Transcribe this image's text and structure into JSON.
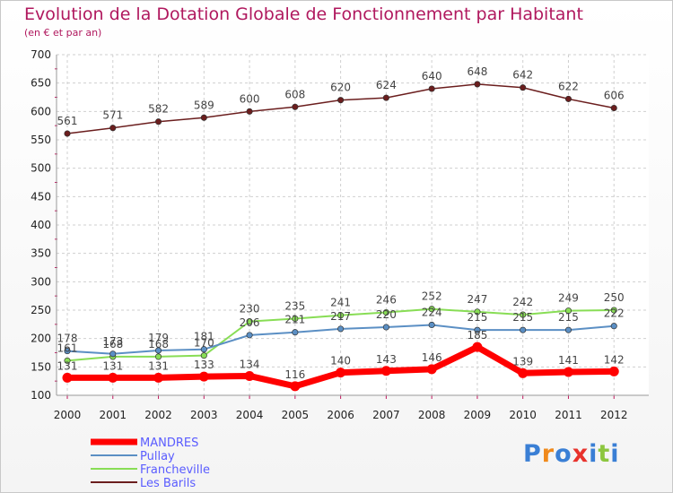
{
  "title": "Evolution de la Dotation Globale de Fonctionnement par Habitant",
  "subtitle": "(en € et par an)",
  "logo": {
    "text": "Proxiti",
    "colors": [
      "#3a7fd5",
      "#f08a1c",
      "#3a7fd5",
      "#e8322c",
      "#3a7fd5",
      "#8cc63f",
      "#3a7fd5"
    ]
  },
  "chart_data": {
    "type": "line",
    "title": "Evolution de la Dotation Globale de Fonctionnement par Habitant",
    "subtitle": "(en € et par an)",
    "xlabel": "",
    "ylabel": "",
    "ylim": [
      100,
      700
    ],
    "yticks": [
      "100",
      "150",
      "200",
      "250",
      "300",
      "350",
      "400",
      "450",
      "500",
      "550",
      "600",
      "650",
      "700"
    ],
    "grid": true,
    "legend_position": "bottom-left",
    "categories": [
      "2000",
      "2001",
      "2002",
      "2003",
      "2004",
      "2005",
      "2006",
      "2007",
      "2008",
      "2009",
      "2010",
      "2011",
      "2012"
    ],
    "series": [
      {
        "name": "MANDRES",
        "color": "#ff0000",
        "label_color": "#444444",
        "values": [
          131,
          131,
          131,
          133,
          134,
          116,
          140,
          143,
          146,
          185,
          139,
          141,
          142
        ]
      },
      {
        "name": "Pullay",
        "color": "#5b8fc4",
        "label_color": "#444444",
        "values": [
          178,
          173,
          179,
          181,
          206,
          211,
          217,
          220,
          224,
          215,
          215,
          215,
          222
        ]
      },
      {
        "name": "Francheville",
        "color": "#88dd55",
        "label_color": "#444444",
        "values": [
          161,
          168,
          168,
          170,
          230,
          235,
          241,
          246,
          252,
          247,
          242,
          249,
          250
        ]
      },
      {
        "name": "Les Barils",
        "color": "#6b1e1e",
        "label_color": "#444444",
        "values": [
          561,
          571,
          582,
          589,
          600,
          608,
          620,
          624,
          640,
          648,
          642,
          622,
          606
        ]
      }
    ]
  }
}
